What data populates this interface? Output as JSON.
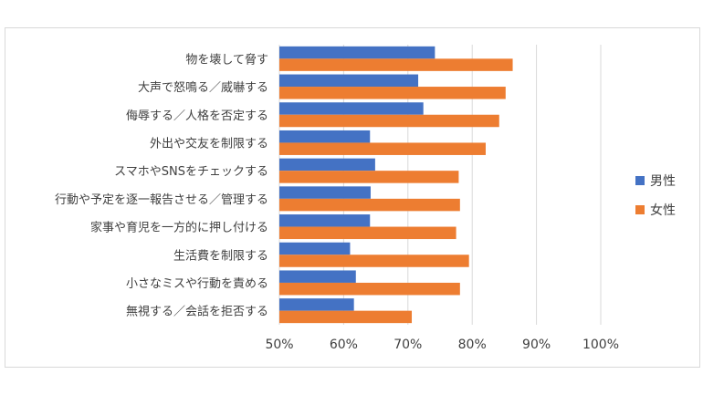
{
  "chart_data": {
    "type": "bar",
    "orientation": "horizontal",
    "title": "",
    "xlabel": "",
    "ylabel": "",
    "categories": [
      "物を壊して脅す",
      "大声で怒鳴る／威嚇する",
      "侮辱する／人格を否定する",
      "外出や交友を制限する",
      "スマホやSNSをチェックする",
      "行動や予定を逐一報告させる／管理する",
      "家事や育児を一方的に押し付ける",
      "生活費を制限する",
      "小さなミスや行動を責める",
      "無視する／会話を拒否する"
    ],
    "series": [
      {
        "name": "男性",
        "color": "#4472c4",
        "values": [
          74.2,
          71.6,
          72.4,
          64.1,
          64.9,
          64.2,
          64.1,
          61.0,
          61.9,
          61.6
        ]
      },
      {
        "name": "女性",
        "color": "#ed7d31",
        "values": [
          86.3,
          85.2,
          84.2,
          82.1,
          77.9,
          78.1,
          77.5,
          79.5,
          78.1,
          70.6
        ]
      }
    ],
    "xlim": [
      50,
      100
    ],
    "xticks": [
      50,
      60,
      70,
      80,
      90,
      100
    ],
    "xtick_labels": [
      "50%",
      "60%",
      "70%",
      "80%",
      "90%",
      "100%"
    ],
    "grid": true,
    "legend_position": "right"
  }
}
